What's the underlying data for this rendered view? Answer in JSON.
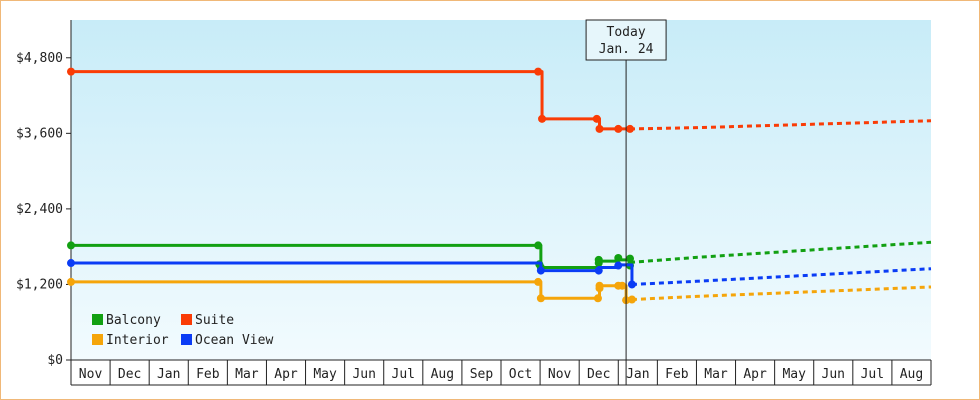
{
  "chart_data": {
    "type": "line",
    "title": "",
    "xlabel": "",
    "ylabel": "",
    "y_ticks": [
      "$0",
      "$1,200",
      "$2,400",
      "$3,600",
      "$4,800"
    ],
    "ylim": [
      0,
      5400
    ],
    "x_months": [
      "Nov",
      "Dec",
      "Jan",
      "Feb",
      "Mar",
      "Apr",
      "May",
      "Jun",
      "Jul",
      "Aug",
      "Sep",
      "Oct",
      "Nov",
      "Dec",
      "Jan",
      "Feb",
      "Mar",
      "Apr",
      "May",
      "Jun",
      "Jul",
      "Aug"
    ],
    "today": {
      "line1": "Today",
      "line2": "Jan. 24",
      "month_index": 14.2
    },
    "legend": {
      "placement": "bottom-left"
    },
    "colors": {
      "plot_top": "#c8ecf8",
      "plot_bottom": "#f2fbfe",
      "Balcony": "#12a012",
      "Suite": "#fa3c06",
      "Interior": "#f5a50a",
      "Ocean View": "#0a3cf5"
    },
    "series": [
      {
        "name": "Suite",
        "steps": [
          [
            0,
            4580
          ],
          [
            11.95,
            4580
          ],
          [
            12.05,
            3830
          ],
          [
            13.45,
            3830
          ],
          [
            13.52,
            3670
          ],
          [
            14.0,
            3670
          ],
          [
            14.3,
            3670
          ]
        ],
        "markers": [
          [
            0,
            4580
          ],
          [
            11.95,
            4580
          ],
          [
            12.05,
            3830
          ],
          [
            13.45,
            3830
          ],
          [
            13.52,
            3670
          ],
          [
            14.0,
            3670
          ],
          [
            14.3,
            3670
          ]
        ],
        "forecast": [
          [
            14.3,
            3670
          ],
          [
            16,
            3690
          ],
          [
            22,
            3800
          ]
        ]
      },
      {
        "name": "Balcony",
        "steps": [
          [
            0,
            1820
          ],
          [
            11.95,
            1820
          ],
          [
            12.02,
            1470
          ],
          [
            13.48,
            1470
          ],
          [
            13.52,
            1570
          ],
          [
            14.0,
            1590
          ],
          [
            14.3,
            1540
          ]
        ],
        "markers": [
          [
            0,
            1820
          ],
          [
            11.95,
            1820
          ],
          [
            11.98,
            1520
          ],
          [
            12.02,
            1470
          ],
          [
            13.5,
            1540
          ],
          [
            13.5,
            1590
          ],
          [
            14.0,
            1620
          ],
          [
            14.3,
            1610
          ],
          [
            14.3,
            1500
          ]
        ],
        "forecast": [
          [
            14.3,
            1550
          ],
          [
            16,
            1630
          ],
          [
            22,
            1870
          ]
        ]
      },
      {
        "name": "Ocean View",
        "steps": [
          [
            0,
            1540
          ],
          [
            11.95,
            1540
          ],
          [
            12.02,
            1420
          ],
          [
            13.48,
            1420
          ],
          [
            13.5,
            1470
          ],
          [
            14.0,
            1510
          ],
          [
            14.3,
            1510
          ],
          [
            14.35,
            1200
          ]
        ],
        "markers": [
          [
            0,
            1540
          ],
          [
            12.02,
            1420
          ],
          [
            13.5,
            1420
          ],
          [
            14.0,
            1500
          ],
          [
            14.35,
            1200
          ]
        ],
        "forecast": [
          [
            14.35,
            1200
          ],
          [
            16,
            1250
          ],
          [
            22,
            1450
          ]
        ]
      },
      {
        "name": "Interior",
        "steps": [
          [
            0,
            1240
          ],
          [
            11.95,
            1240
          ],
          [
            12.02,
            980
          ],
          [
            13.48,
            980
          ],
          [
            13.52,
            1180
          ],
          [
            14.1,
            1180
          ],
          [
            14.2,
            960
          ],
          [
            14.35,
            960
          ]
        ],
        "markers": [
          [
            0,
            1240
          ],
          [
            11.95,
            1240
          ],
          [
            12.02,
            980
          ],
          [
            13.48,
            980
          ],
          [
            13.52,
            1140
          ],
          [
            13.52,
            1180
          ],
          [
            14.0,
            1180
          ],
          [
            14.1,
            1180
          ],
          [
            14.2,
            950
          ],
          [
            14.35,
            960
          ]
        ],
        "forecast": [
          [
            14.35,
            960
          ],
          [
            16,
            1010
          ],
          [
            22,
            1160
          ]
        ]
      }
    ]
  }
}
